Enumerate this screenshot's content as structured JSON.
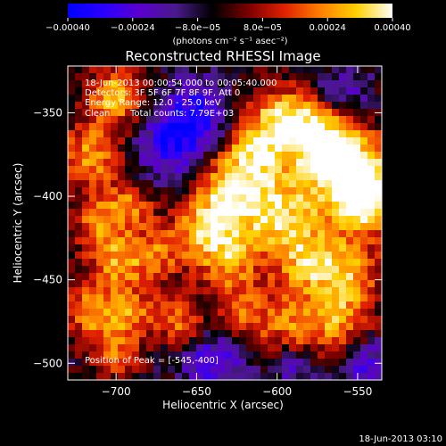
{
  "chart_data": {
    "type": "heatmap",
    "title": "Reconstructed RHESSI Image",
    "annotations": [
      "18-Jun-2013 00:00:54.000 to 00:05:40.000",
      "Detectors: 3F 5F 6F 7F 8F 9F, Att 0",
      "Energy Range: 12.0 - 25.0 keV",
      "Clean",
      "Total counts: 7.79E+03"
    ],
    "peak_label": "Position of Peak = [-545,-400]",
    "peak": {
      "x": -545,
      "y": -400
    },
    "xlabel": "Heliocentric X (arcsec)",
    "ylabel": "Heliocentric Y (arcsec)",
    "xlim": [
      -730,
      -535
    ],
    "ylim": [
      -510,
      -322
    ],
    "x_ticks": [
      -700,
      -650,
      -600,
      -550
    ],
    "y_ticks": [
      -350,
      -400,
      -450,
      -500
    ],
    "x_tick_labels": [
      "−700",
      "−650",
      "−600",
      "−550"
    ],
    "y_tick_labels": [
      "−350",
      "−400",
      "−450",
      "−500"
    ],
    "colorbar": {
      "min": -0.0004,
      "max": 0.0004,
      "tick_values": [
        -0.0004,
        -0.00024,
        -8e-05,
        8e-05,
        0.00024,
        0.0004
      ],
      "tick_labels": [
        "−0.00040",
        "−0.00024",
        "−8.0e−05",
        "8.0e−05",
        "0.00024",
        "0.00040"
      ],
      "unit_label": "(photons cm⁻² s⁻¹ asec⁻²)",
      "colors": [
        "#0000ff",
        "#2a00ff",
        "#5a00cc",
        "#4a1a8a",
        "#000000",
        "#7a0000",
        "#e02000",
        "#ff8000",
        "#ffd000",
        "#ffffff"
      ]
    },
    "blobs": [
      {
        "x": -545,
        "y": -400,
        "r": 16,
        "v": 1.0
      },
      {
        "x": -560,
        "y": -380,
        "r": 18,
        "v": 0.85
      },
      {
        "x": -575,
        "y": -360,
        "r": 15,
        "v": 0.7
      },
      {
        "x": -600,
        "y": -355,
        "r": 14,
        "v": 0.75
      },
      {
        "x": -615,
        "y": -375,
        "r": 12,
        "v": 0.55
      },
      {
        "x": -600,
        "y": -410,
        "r": 18,
        "v": 0.8
      },
      {
        "x": -630,
        "y": -395,
        "r": 16,
        "v": 0.7
      },
      {
        "x": -645,
        "y": -420,
        "r": 14,
        "v": 0.65
      },
      {
        "x": -630,
        "y": -440,
        "r": 13,
        "v": 0.55
      },
      {
        "x": -580,
        "y": -440,
        "r": 15,
        "v": 0.65
      },
      {
        "x": -555,
        "y": -445,
        "r": 14,
        "v": 0.55
      },
      {
        "x": -560,
        "y": -475,
        "r": 14,
        "v": 0.6
      },
      {
        "x": -590,
        "y": -480,
        "r": 14,
        "v": 0.55
      },
      {
        "x": -620,
        "y": -470,
        "r": 12,
        "v": 0.5
      },
      {
        "x": -700,
        "y": -340,
        "r": 12,
        "v": 0.75
      },
      {
        "x": -715,
        "y": -375,
        "r": 14,
        "v": 0.65
      },
      {
        "x": -710,
        "y": -415,
        "r": 12,
        "v": 0.55
      },
      {
        "x": -690,
        "y": -405,
        "r": 10,
        "v": 0.5
      },
      {
        "x": -675,
        "y": -435,
        "r": 12,
        "v": 0.5
      },
      {
        "x": -700,
        "y": -440,
        "r": 12,
        "v": 0.6
      },
      {
        "x": -715,
        "y": -470,
        "r": 13,
        "v": 0.6
      },
      {
        "x": -690,
        "y": -470,
        "r": 11,
        "v": 0.5
      },
      {
        "x": -660,
        "y": -475,
        "r": 11,
        "v": 0.55
      },
      {
        "x": -700,
        "y": -495,
        "r": 10,
        "v": 0.5
      }
    ],
    "neg_blobs": [
      {
        "x": -665,
        "y": -370,
        "r": 16,
        "v": 0.6
      },
      {
        "x": -650,
        "y": -350,
        "r": 14,
        "v": 0.55
      },
      {
        "x": -560,
        "y": -340,
        "r": 12,
        "v": 0.5
      },
      {
        "x": -640,
        "y": -500,
        "r": 14,
        "v": 0.55
      },
      {
        "x": -545,
        "y": -500,
        "r": 12,
        "v": 0.5
      },
      {
        "x": -590,
        "y": -500,
        "r": 10,
        "v": 0.45
      }
    ]
  },
  "footer_date": "18-Jun-2013 03:10"
}
